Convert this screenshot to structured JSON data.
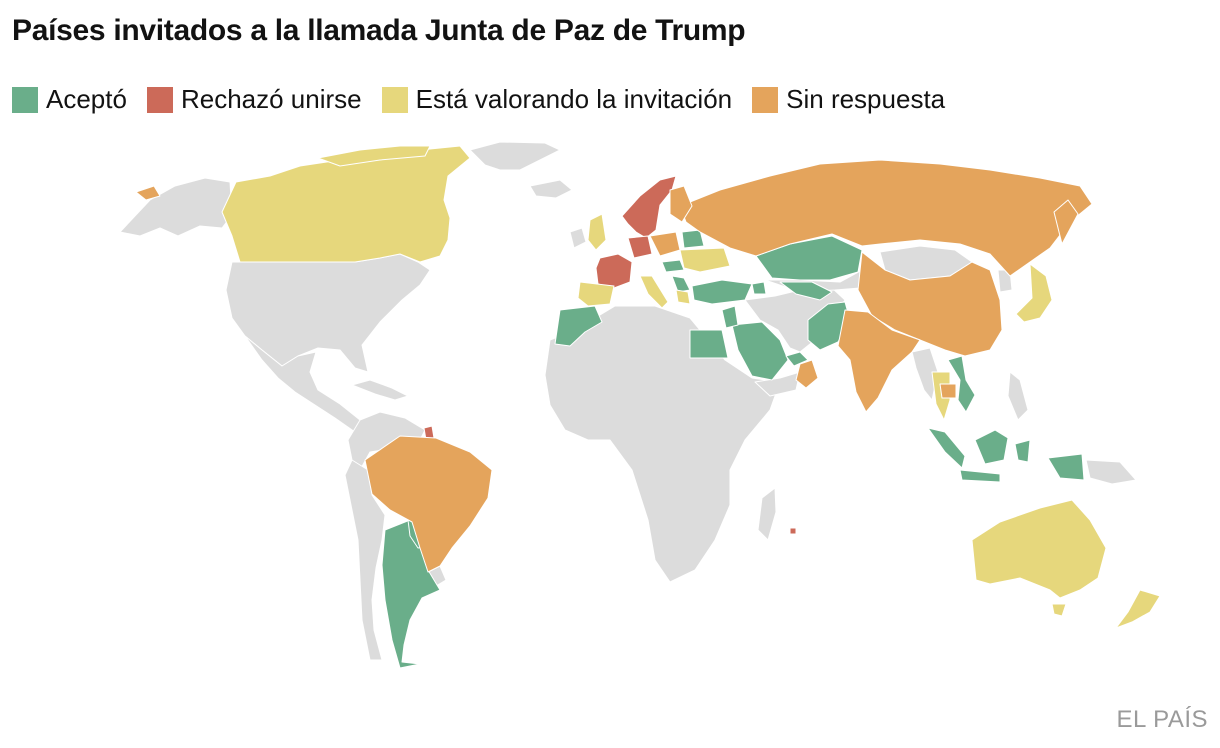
{
  "title": "Países invitados a la llamada Junta de Paz de Trump",
  "legend": [
    {
      "key": "accepted",
      "label": "Aceptó",
      "color": "#6aae8a"
    },
    {
      "key": "rejected",
      "label": "Rechazó unirse",
      "color": "#cc6a59"
    },
    {
      "key": "considering",
      "label": "Está valorando la invitación",
      "color": "#e6d77c"
    },
    {
      "key": "no_response",
      "label": "Sin respuesta",
      "color": "#e4a45c"
    }
  ],
  "colors": {
    "not_invited": "#dcdcdc",
    "border": "#ffffff"
  },
  "brand": "EL PAÍS",
  "map": {
    "projection": "world",
    "countries": [
      {
        "name": "Argentina",
        "status": "accepted"
      },
      {
        "name": "Paraguay",
        "status": "accepted"
      },
      {
        "name": "Morocco",
        "status": "accepted"
      },
      {
        "name": "Egypt",
        "status": "accepted"
      },
      {
        "name": "Saudi Arabia",
        "status": "accepted"
      },
      {
        "name": "Turkey",
        "status": "accepted"
      },
      {
        "name": "Kazakhstan",
        "status": "accepted"
      },
      {
        "name": "Uzbekistan",
        "status": "accepted"
      },
      {
        "name": "Pakistan",
        "status": "accepted"
      },
      {
        "name": "Vietnam",
        "status": "accepted"
      },
      {
        "name": "Indonesia",
        "status": "accepted"
      },
      {
        "name": "Hungary",
        "status": "accepted"
      },
      {
        "name": "Belarus",
        "status": "accepted"
      },
      {
        "name": "Bahrain",
        "status": "accepted"
      },
      {
        "name": "Qatar",
        "status": "accepted"
      },
      {
        "name": "United Arab Emirates",
        "status": "accepted"
      },
      {
        "name": "Jordan",
        "status": "accepted"
      },
      {
        "name": "Azerbaijan",
        "status": "accepted"
      },
      {
        "name": "Armenia",
        "status": "accepted"
      },
      {
        "name": "Kosovo",
        "status": "accepted"
      },
      {
        "name": "Albania",
        "status": "accepted"
      },
      {
        "name": "Bulgaria",
        "status": "accepted"
      },
      {
        "name": "Mongolia",
        "status": "accepted"
      },
      {
        "name": "Norway",
        "status": "rejected"
      },
      {
        "name": "Sweden",
        "status": "rejected"
      },
      {
        "name": "France",
        "status": "rejected"
      },
      {
        "name": "Slovenia",
        "status": "rejected"
      },
      {
        "name": "French Guiana",
        "status": "rejected"
      },
      {
        "name": "Canada",
        "status": "considering"
      },
      {
        "name": "United Kingdom",
        "status": "considering"
      },
      {
        "name": "Spain",
        "status": "considering"
      },
      {
        "name": "Italy",
        "status": "considering"
      },
      {
        "name": "Ukraine",
        "status": "considering"
      },
      {
        "name": "Romania",
        "status": "considering"
      },
      {
        "name": "Greece",
        "status": "considering"
      },
      {
        "name": "Japan",
        "status": "considering"
      },
      {
        "name": "Thailand",
        "status": "considering"
      },
      {
        "name": "Australia",
        "status": "considering"
      },
      {
        "name": "New Zealand",
        "status": "considering"
      },
      {
        "name": "Greenland",
        "status": "considering"
      },
      {
        "name": "Russia",
        "status": "no_response"
      },
      {
        "name": "China",
        "status": "no_response"
      },
      {
        "name": "India",
        "status": "no_response"
      },
      {
        "name": "Brazil",
        "status": "no_response"
      },
      {
        "name": "Germany",
        "status": "no_response"
      },
      {
        "name": "Finland",
        "status": "no_response"
      },
      {
        "name": "Poland",
        "status": "no_response"
      },
      {
        "name": "Oman",
        "status": "no_response"
      },
      {
        "name": "Cambodia",
        "status": "no_response"
      },
      {
        "name": "Croatia",
        "status": "no_response"
      }
    ]
  }
}
